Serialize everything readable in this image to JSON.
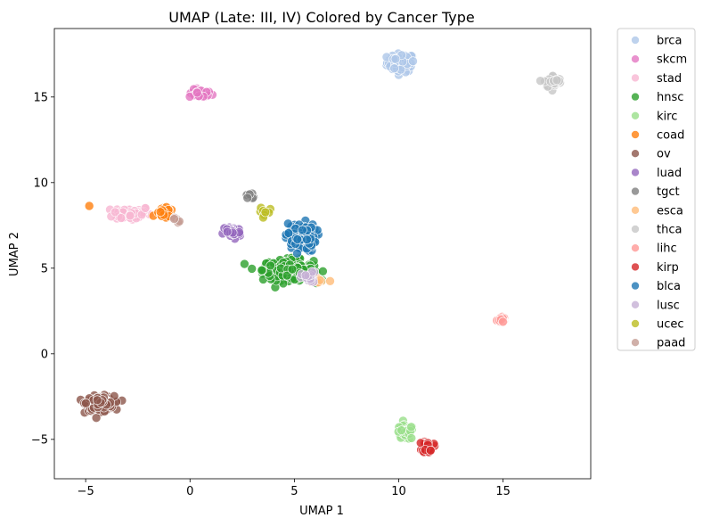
{
  "chart_data": {
    "type": "scatter",
    "title": "UMAP (Late: III, IV) Colored by Cancer Type",
    "xlabel": "UMAP 1",
    "ylabel": "UMAP 2",
    "xlim": [
      -6.5,
      19.2
    ],
    "ylim": [
      -7.3,
      19.0
    ],
    "xticks": [
      -5,
      0,
      5,
      10,
      15
    ],
    "yticks": [
      -5,
      0,
      5,
      10,
      15
    ],
    "grid": false,
    "legend_position": "outside-right",
    "series": [
      {
        "name": "brca",
        "color": "#aec7e8",
        "clusters": [
          {
            "cx": 10.1,
            "cy": 17.0,
            "sx": 0.55,
            "sy": 0.45,
            "n": 70
          }
        ]
      },
      {
        "name": "skcm",
        "color": "#e377c2",
        "clusters": [
          {
            "cx": 0.5,
            "cy": 15.2,
            "sx": 0.45,
            "sy": 0.2,
            "n": 40
          }
        ]
      },
      {
        "name": "stad",
        "color": "#f7b6d2",
        "clusters": [
          {
            "cx": -2.8,
            "cy": 8.2,
            "sx": 0.75,
            "sy": 0.35,
            "n": 60
          }
        ]
      },
      {
        "name": "hnsc",
        "color": "#2ca02c",
        "clusters": [
          {
            "cx": 4.7,
            "cy": 4.9,
            "sx": 1.0,
            "sy": 0.5,
            "n": 190
          }
        ]
      },
      {
        "name": "kirc",
        "color": "#98df8a",
        "clusters": [
          {
            "cx": 10.3,
            "cy": -4.6,
            "sx": 0.35,
            "sy": 0.35,
            "n": 55
          }
        ]
      },
      {
        "name": "coad",
        "color": "#ff7f0e",
        "clusters": [
          {
            "cx": -1.2,
            "cy": 8.2,
            "sx": 0.35,
            "sy": 0.25,
            "n": 28
          },
          {
            "cx": -4.8,
            "cy": 8.65,
            "sx": 0.02,
            "sy": 0.02,
            "n": 1
          }
        ]
      },
      {
        "name": "ov",
        "color": "#8c564b",
        "clusters": [
          {
            "cx": -4.3,
            "cy": -2.9,
            "sx": 0.55,
            "sy": 0.35,
            "n": 150
          }
        ]
      },
      {
        "name": "luad",
        "color": "#9467bd",
        "clusters": [
          {
            "cx": 2.0,
            "cy": 7.1,
            "sx": 0.35,
            "sy": 0.35,
            "n": 32
          }
        ]
      },
      {
        "name": "tgct",
        "color": "#7f7f7f",
        "clusters": [
          {
            "cx": 2.9,
            "cy": 9.2,
            "sx": 0.3,
            "sy": 0.2,
            "n": 6
          }
        ]
      },
      {
        "name": "esca",
        "color": "#ffbb78",
        "clusters": [
          {
            "cx": 6.2,
            "cy": 4.3,
            "sx": 0.4,
            "sy": 0.15,
            "n": 10
          }
        ]
      },
      {
        "name": "thca",
        "color": "#c7c7c7",
        "clusters": [
          {
            "cx": 17.4,
            "cy": 15.9,
            "sx": 0.35,
            "sy": 0.3,
            "n": 45
          }
        ]
      },
      {
        "name": "lihc",
        "color": "#ff9896",
        "clusters": [
          {
            "cx": 14.9,
            "cy": 2.0,
            "sx": 0.15,
            "sy": 0.15,
            "n": 16
          }
        ]
      },
      {
        "name": "kirp",
        "color": "#d62728",
        "clusters": [
          {
            "cx": 11.4,
            "cy": -5.4,
            "sx": 0.22,
            "sy": 0.3,
            "n": 24
          }
        ]
      },
      {
        "name": "blca",
        "color": "#1f77b4",
        "clusters": [
          {
            "cx": 5.3,
            "cy": 6.8,
            "sx": 0.6,
            "sy": 0.7,
            "n": 110
          }
        ]
      },
      {
        "name": "lusc",
        "color": "#c5b0d5",
        "clusters": [
          {
            "cx": 5.7,
            "cy": 4.4,
            "sx": 0.3,
            "sy": 0.3,
            "n": 18
          }
        ]
      },
      {
        "name": "ucec",
        "color": "#bcbd22",
        "clusters": [
          {
            "cx": 3.6,
            "cy": 8.3,
            "sx": 0.3,
            "sy": 0.4,
            "n": 8
          }
        ]
      },
      {
        "name": "paad",
        "color": "#c49c94",
        "clusters": [
          {
            "cx": -0.6,
            "cy": 7.8,
            "sx": 0.25,
            "sy": 0.15,
            "n": 6
          }
        ]
      }
    ]
  }
}
